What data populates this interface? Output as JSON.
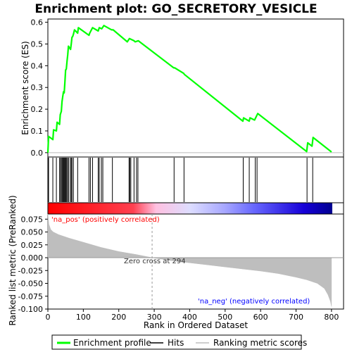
{
  "chart_data": [
    {
      "type": "line",
      "title": "Enrichment plot: GO_SECRETORY_VESICLE",
      "ylabel": "Enrichment score (ES)",
      "xlim": [
        0,
        834
      ],
      "ylim": [
        -0.02,
        0.615
      ],
      "yticks": [
        "0.0",
        "0.1",
        "0.2",
        "0.3",
        "0.4",
        "0.5",
        "0.6"
      ],
      "series": [
        {
          "name": "Enrichment profile",
          "color": "#00ff00",
          "points": [
            [
              0,
              0.0
            ],
            [
              2,
              0.075
            ],
            [
              14,
              0.06
            ],
            [
              16,
              0.105
            ],
            [
              24,
              0.1
            ],
            [
              26,
              0.14
            ],
            [
              33,
              0.13
            ],
            [
              35,
              0.175
            ],
            [
              38,
              0.19
            ],
            [
              40,
              0.235
            ],
            [
              42,
              0.26
            ],
            [
              44,
              0.28
            ],
            [
              46,
              0.275
            ],
            [
              48,
              0.325
            ],
            [
              50,
              0.38
            ],
            [
              52,
              0.385
            ],
            [
              54,
              0.42
            ],
            [
              56,
              0.45
            ],
            [
              58,
              0.49
            ],
            [
              64,
              0.475
            ],
            [
              66,
              0.5
            ],
            [
              68,
              0.53
            ],
            [
              70,
              0.535
            ],
            [
              72,
              0.545
            ],
            [
              75,
              0.565
            ],
            [
              84,
              0.55
            ],
            [
              86,
              0.575
            ],
            [
              116,
              0.54
            ],
            [
              118,
              0.55
            ],
            [
              126,
              0.575
            ],
            [
              142,
              0.56
            ],
            [
              145,
              0.575
            ],
            [
              152,
              0.57
            ],
            [
              158,
              0.585
            ],
            [
              180,
              0.565
            ],
            [
              184,
              0.565
            ],
            [
              224,
              0.51
            ],
            [
              230,
              0.525
            ],
            [
              243,
              0.515
            ],
            [
              246,
              0.51
            ],
            [
              255,
              0.515
            ],
            [
              355,
              0.39
            ],
            [
              358,
              0.39
            ],
            [
              383,
              0.365
            ],
            [
              385,
              0.36
            ],
            [
              550,
              0.145
            ],
            [
              552,
              0.16
            ],
            [
              568,
              0.145
            ],
            [
              570,
              0.16
            ],
            [
              583,
              0.15
            ],
            [
              592,
              0.18
            ],
            [
              730,
              0.005
            ],
            [
              733,
              0.045
            ],
            [
              745,
              0.03
            ],
            [
              748,
              0.07
            ],
            [
              800,
              0.003
            ]
          ]
        }
      ],
      "hits": [
        2,
        14,
        24,
        33,
        36,
        38,
        41,
        43,
        45,
        47,
        49,
        51,
        53,
        56,
        58,
        63,
        66,
        68,
        72,
        84,
        116,
        120,
        126,
        142,
        145,
        151,
        155,
        182,
        229,
        231,
        234,
        243,
        250,
        254,
        356,
        384,
        551,
        568,
        585,
        590,
        731,
        747
      ]
    },
    {
      "type": "area",
      "xlabel": "Rank in Ordered Dataset",
      "ylabel": "Ranked list metric (PreRanked)",
      "xlim": [
        0,
        834
      ],
      "ylim": [
        -0.1,
        0.085
      ],
      "xticks": [
        "0",
        "100",
        "200",
        "300",
        "400",
        "500",
        "600",
        "700",
        "800"
      ],
      "yticks": [
        "0.075",
        "0.050",
        "0.025",
        "0.000",
        "-0.025",
        "-0.050",
        "-0.075",
        "-0.100"
      ],
      "zero_cross_label": "Zero cross at 294",
      "zero_cross": 294,
      "pos_label": "'na_pos' (positively correlated)",
      "neg_label": "'na_neg' (negatively correlated)",
      "series": [
        {
          "name": "Ranking metric scores",
          "color": "#bebebe",
          "points": [
            [
              0,
              0.085
            ],
            [
              3,
              0.065
            ],
            [
              8,
              0.055
            ],
            [
              15,
              0.05
            ],
            [
              30,
              0.045
            ],
            [
              60,
              0.038
            ],
            [
              100,
              0.03
            ],
            [
              150,
              0.02
            ],
            [
              200,
              0.012
            ],
            [
              250,
              0.006
            ],
            [
              294,
              0.0
            ],
            [
              350,
              -0.006
            ],
            [
              400,
              -0.01
            ],
            [
              450,
              -0.014
            ],
            [
              500,
              -0.018
            ],
            [
              550,
              -0.022
            ],
            [
              600,
              -0.026
            ],
            [
              650,
              -0.031
            ],
            [
              700,
              -0.038
            ],
            [
              730,
              -0.043
            ],
            [
              760,
              -0.05
            ],
            [
              780,
              -0.06
            ],
            [
              790,
              -0.072
            ],
            [
              797,
              -0.085
            ],
            [
              800,
              -0.095
            ]
          ]
        }
      ]
    }
  ],
  "legend": {
    "items": [
      {
        "label": "Enrichment profile",
        "color": "#00ff00"
      },
      {
        "label": "Hits",
        "color": "#000000"
      },
      {
        "label": "Ranking metric scores",
        "color": "#bebebe"
      }
    ]
  },
  "colors": {
    "profile": "#00ff00",
    "pos_text": "#ff0000",
    "neg_text": "#0000ff",
    "bar_stops": [
      "#ff0000",
      "#ff6070",
      "#ffc8e0",
      "#d8d8ff",
      "#7070ff",
      "#1500e0",
      "#0000a0"
    ]
  }
}
